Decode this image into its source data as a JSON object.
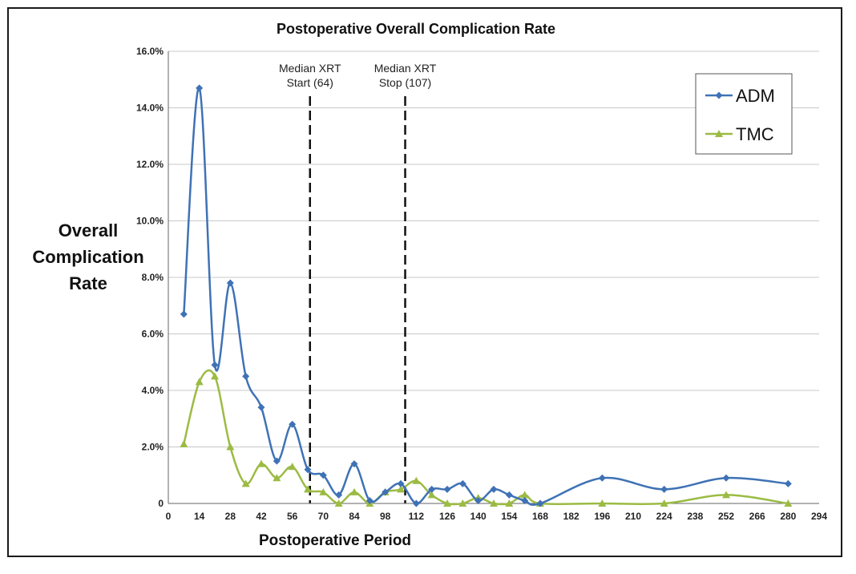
{
  "chart_data": {
    "type": "line",
    "title": "Postoperative Overall Complication Rate",
    "xlabel": "Postoperative Period",
    "ylabel_lines": [
      "Overall",
      "Complication",
      "Rate"
    ],
    "xlim": [
      0,
      294
    ],
    "ylim": [
      0,
      16
    ],
    "x_ticks": [
      0,
      14,
      28,
      42,
      56,
      70,
      84,
      98,
      112,
      126,
      140,
      154,
      168,
      182,
      196,
      210,
      224,
      238,
      252,
      266,
      280,
      294
    ],
    "x_tick_labels": [
      "0",
      "14",
      "28",
      "42",
      "56",
      "70",
      "84",
      "98",
      "112",
      "126",
      "140",
      "154",
      "168",
      "182",
      "196",
      "210",
      "224",
      "238",
      "252",
      "266",
      "280",
      "294"
    ],
    "y_ticks": [
      0,
      2,
      4,
      6,
      8,
      10,
      12,
      14,
      16
    ],
    "y_tick_labels": [
      "0",
      "2.0%",
      "4.0%",
      "6.0%",
      "8.0%",
      "10.0%",
      "12.0%",
      "14.0%",
      "16.0%"
    ],
    "grid": "horizontal",
    "legend_position": "top-right",
    "series": [
      {
        "name": "ADM",
        "color": "#3f72b5",
        "marker": "diamond",
        "x": [
          7,
          14,
          21,
          28,
          35,
          42,
          49,
          56,
          63,
          70,
          77,
          84,
          91,
          98,
          105,
          112,
          119,
          126,
          133,
          140,
          147,
          154,
          161,
          168,
          196,
          224,
          252,
          280
        ],
        "values": [
          6.7,
          14.7,
          4.9,
          7.8,
          4.5,
          3.4,
          1.5,
          2.8,
          1.2,
          1.0,
          0.3,
          1.4,
          0.1,
          0.4,
          0.7,
          0.0,
          0.5,
          0.5,
          0.7,
          0.1,
          0.5,
          0.3,
          0.1,
          0.0,
          0.9,
          0.5,
          0.9,
          0.7
        ]
      },
      {
        "name": "TMC",
        "color": "#9bbb43",
        "marker": "triangle",
        "x": [
          7,
          14,
          21,
          28,
          35,
          42,
          49,
          56,
          63,
          70,
          77,
          84,
          91,
          98,
          105,
          112,
          119,
          126,
          133,
          140,
          147,
          154,
          161,
          168,
          196,
          224,
          252,
          280
        ],
        "values": [
          2.1,
          4.3,
          4.5,
          2.0,
          0.7,
          1.4,
          0.9,
          1.3,
          0.5,
          0.4,
          0.0,
          0.4,
          0.0,
          0.4,
          0.5,
          0.8,
          0.3,
          0.0,
          0.0,
          0.2,
          0.0,
          0.0,
          0.3,
          0.0,
          0.0,
          0.0,
          0.3,
          0.0
        ]
      }
    ],
    "annotations": [
      {
        "x": 64,
        "lines": [
          "Median XRT",
          "Start (64)"
        ]
      },
      {
        "x": 107,
        "lines": [
          "Median XRT",
          "Stop (107)"
        ]
      }
    ]
  }
}
